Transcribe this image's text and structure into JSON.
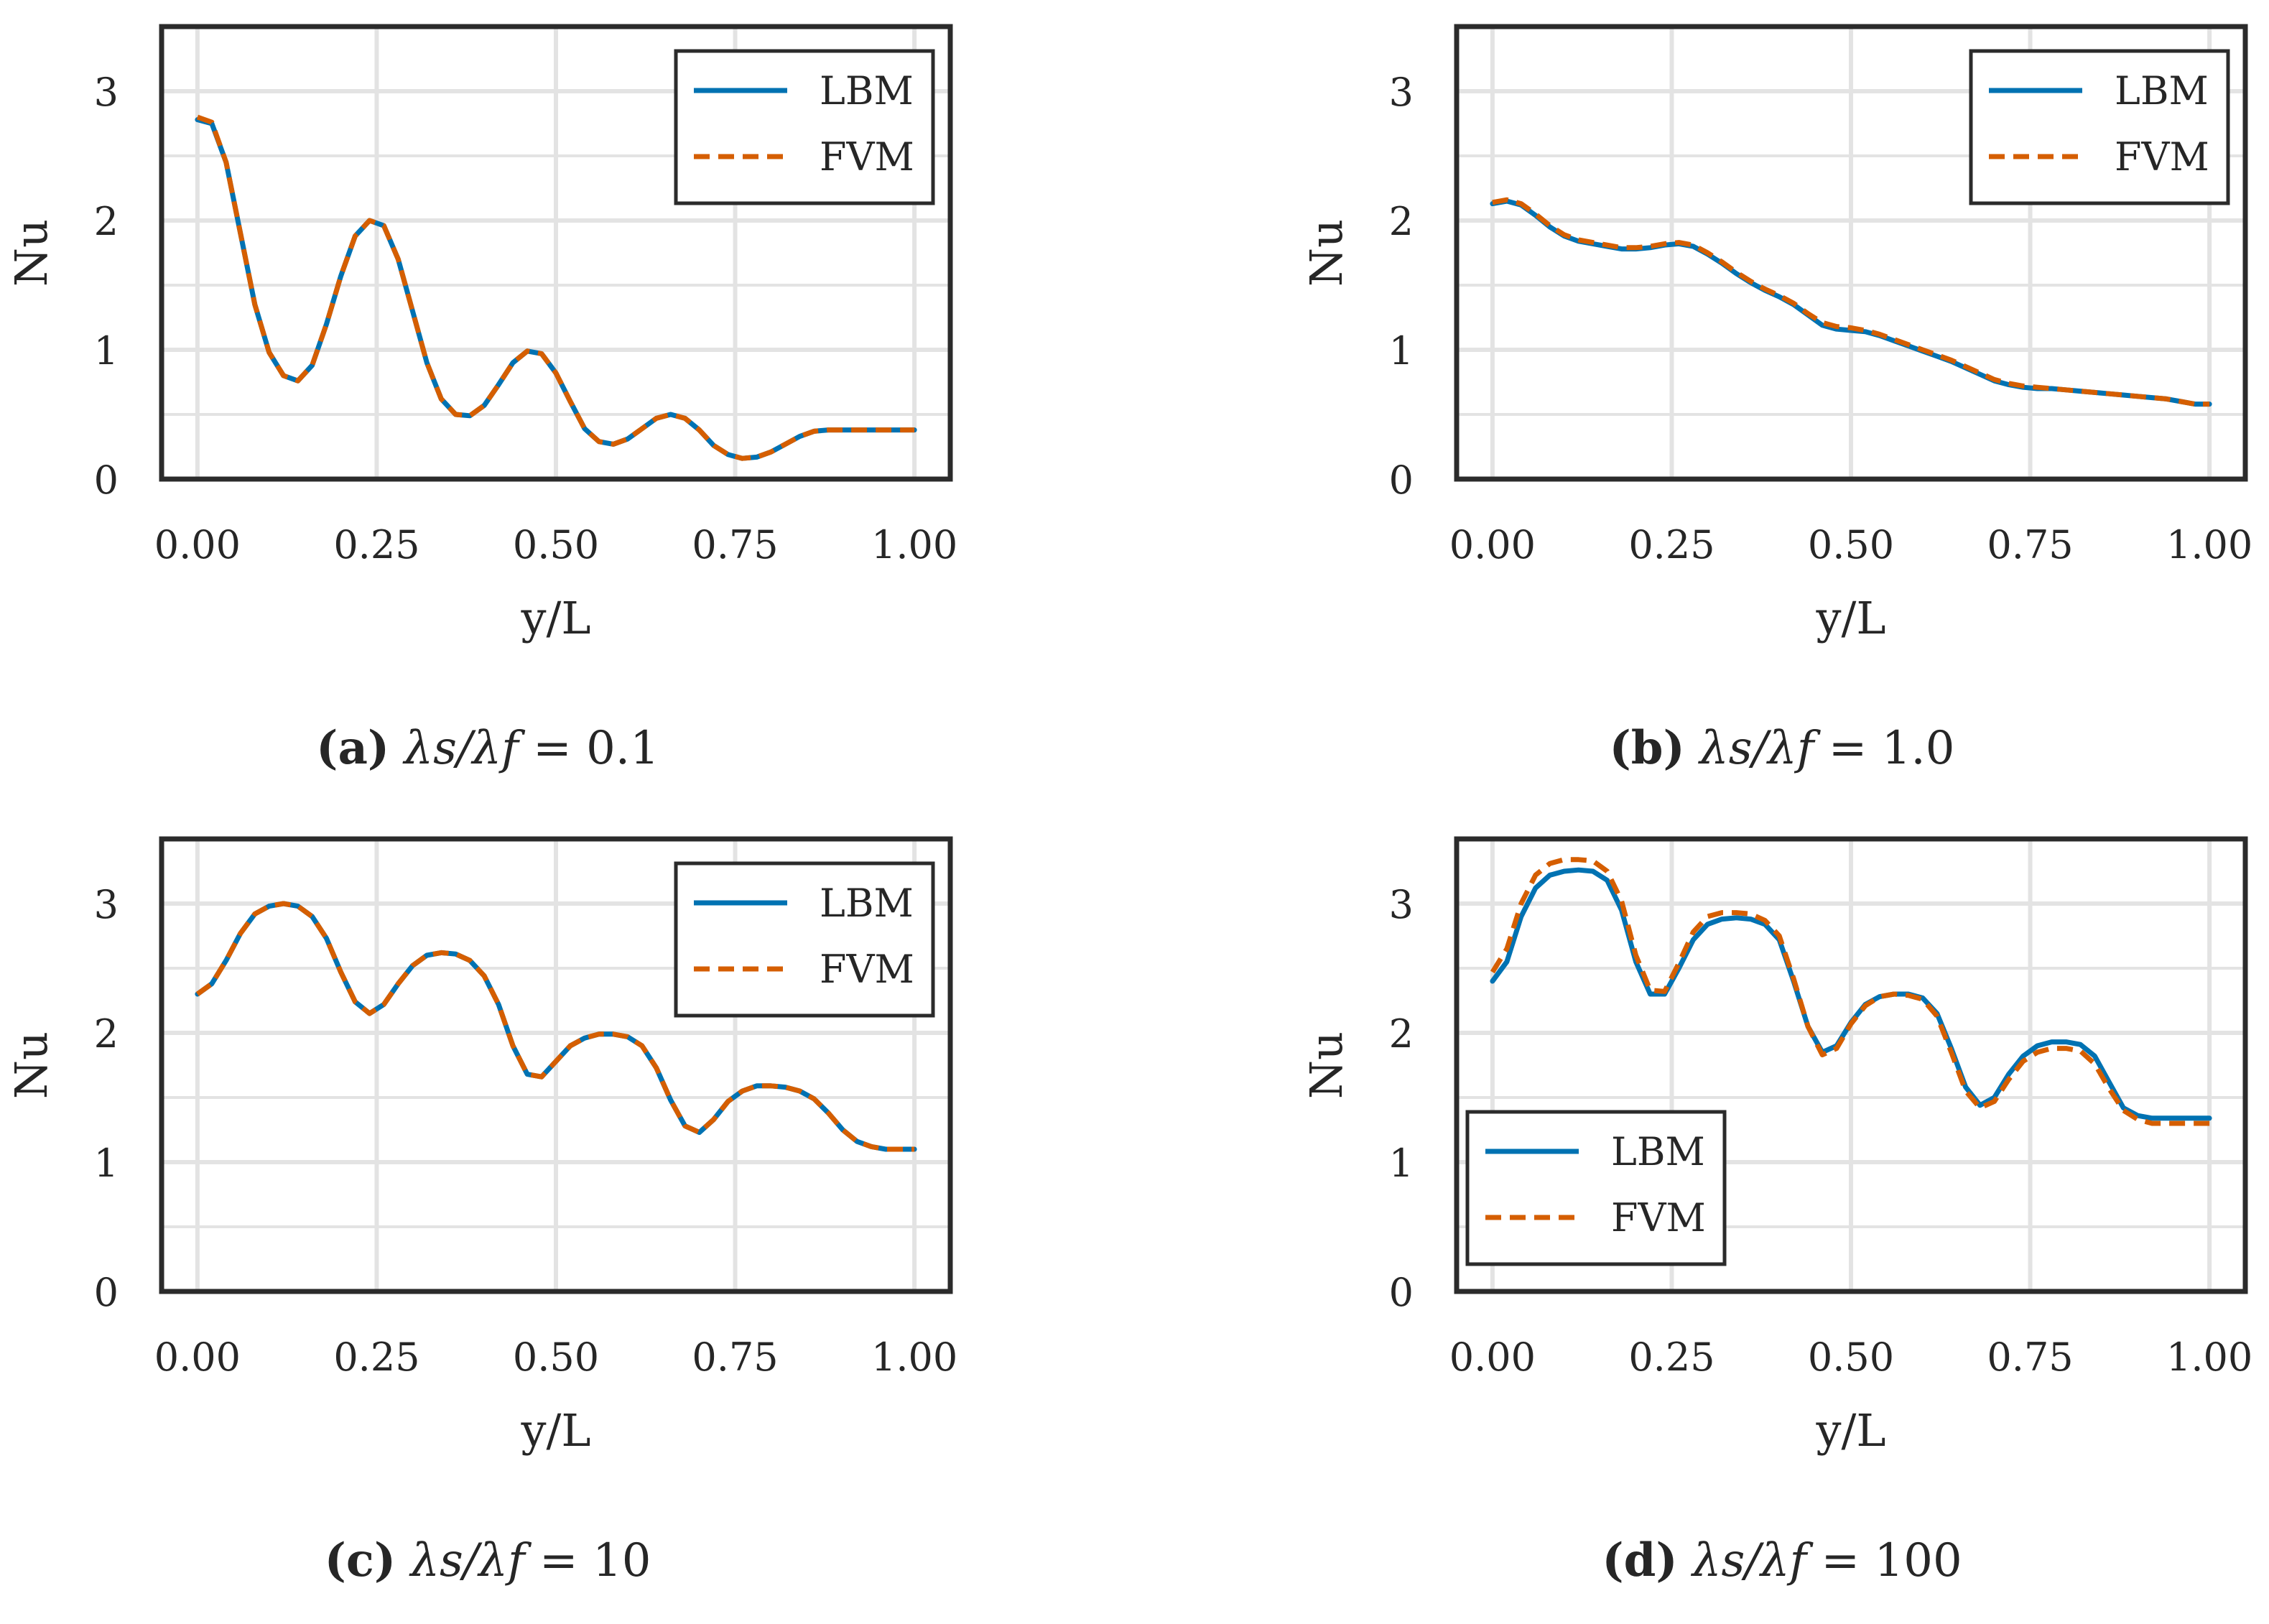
{
  "colors": {
    "lbm": "#0072b2",
    "fvm": "#d55e00",
    "frame": "#2b2b2b",
    "grid": "#e3e3e3"
  },
  "chart_data": [
    {
      "type": "line",
      "panel": "a",
      "caption": {
        "label": "(a)",
        "expr": "λs/λf",
        "value": "= 0.1"
      },
      "xlabel": "y/L",
      "ylabel": "Nu",
      "xlim": [
        -0.05,
        1.05
      ],
      "ylim": [
        0,
        3.5
      ],
      "xticks": [
        0,
        0.25,
        0.5,
        0.75,
        1.0
      ],
      "xtick_labels": [
        "0.00",
        "0.25",
        "0.50",
        "0.75",
        "1.00"
      ],
      "yticks": [
        0,
        1,
        2,
        3
      ],
      "ytick_labels": [
        "0",
        "1",
        "2",
        "3"
      ],
      "grid": true,
      "legend": "top-right",
      "x": [
        0.0,
        0.02,
        0.04,
        0.06,
        0.08,
        0.1,
        0.12,
        0.14,
        0.16,
        0.18,
        0.2,
        0.22,
        0.24,
        0.26,
        0.28,
        0.3,
        0.32,
        0.34,
        0.36,
        0.38,
        0.4,
        0.42,
        0.44,
        0.46,
        0.48,
        0.5,
        0.52,
        0.54,
        0.56,
        0.58,
        0.6,
        0.62,
        0.64,
        0.66,
        0.68,
        0.7,
        0.72,
        0.74,
        0.76,
        0.78,
        0.8,
        0.82,
        0.84,
        0.86,
        0.88,
        0.9,
        0.92,
        0.94,
        0.96,
        0.98,
        1.0
      ],
      "series": [
        {
          "name": "LBM",
          "style": "solid",
          "values": [
            2.78,
            2.75,
            2.45,
            1.9,
            1.35,
            0.98,
            0.8,
            0.76,
            0.88,
            1.2,
            1.57,
            1.88,
            2.0,
            1.96,
            1.7,
            1.3,
            0.9,
            0.62,
            0.5,
            0.49,
            0.57,
            0.73,
            0.9,
            0.99,
            0.97,
            0.82,
            0.6,
            0.39,
            0.29,
            0.27,
            0.31,
            0.39,
            0.47,
            0.5,
            0.47,
            0.38,
            0.26,
            0.19,
            0.16,
            0.17,
            0.21,
            0.27,
            0.33,
            0.37,
            0.38,
            0.38,
            0.38,
            0.38,
            0.38,
            0.38,
            0.38
          ]
        },
        {
          "name": "FVM",
          "style": "dashed",
          "values": [
            2.8,
            2.76,
            2.45,
            1.9,
            1.35,
            0.98,
            0.8,
            0.76,
            0.88,
            1.2,
            1.57,
            1.88,
            2.0,
            1.96,
            1.7,
            1.3,
            0.9,
            0.62,
            0.5,
            0.49,
            0.57,
            0.73,
            0.9,
            0.99,
            0.97,
            0.82,
            0.6,
            0.39,
            0.29,
            0.27,
            0.31,
            0.39,
            0.47,
            0.5,
            0.47,
            0.38,
            0.26,
            0.19,
            0.16,
            0.17,
            0.21,
            0.27,
            0.33,
            0.37,
            0.38,
            0.38,
            0.38,
            0.38,
            0.38,
            0.38,
            0.38
          ]
        }
      ]
    },
    {
      "type": "line",
      "panel": "b",
      "caption": {
        "label": "(b)",
        "expr": "λs/λf",
        "value": "= 1.0"
      },
      "xlabel": "y/L",
      "ylabel": "Nu",
      "xlim": [
        -0.05,
        1.05
      ],
      "ylim": [
        0,
        3.5
      ],
      "xticks": [
        0,
        0.25,
        0.5,
        0.75,
        1.0
      ],
      "xtick_labels": [
        "0.00",
        "0.25",
        "0.50",
        "0.75",
        "1.00"
      ],
      "yticks": [
        0,
        1,
        2,
        3
      ],
      "ytick_labels": [
        "0",
        "1",
        "2",
        "3"
      ],
      "grid": true,
      "legend": "top-right",
      "x": [
        0.0,
        0.02,
        0.04,
        0.06,
        0.08,
        0.1,
        0.12,
        0.14,
        0.16,
        0.18,
        0.2,
        0.22,
        0.24,
        0.26,
        0.28,
        0.3,
        0.32,
        0.34,
        0.36,
        0.38,
        0.4,
        0.42,
        0.44,
        0.46,
        0.48,
        0.5,
        0.52,
        0.54,
        0.56,
        0.58,
        0.6,
        0.62,
        0.64,
        0.66,
        0.68,
        0.7,
        0.72,
        0.74,
        0.76,
        0.78,
        0.8,
        0.82,
        0.84,
        0.86,
        0.88,
        0.9,
        0.92,
        0.94,
        0.96,
        0.98,
        1.0
      ],
      "series": [
        {
          "name": "LBM",
          "style": "solid",
          "values": [
            2.13,
            2.15,
            2.12,
            2.04,
            1.95,
            1.88,
            1.84,
            1.82,
            1.8,
            1.78,
            1.78,
            1.79,
            1.81,
            1.82,
            1.8,
            1.74,
            1.67,
            1.59,
            1.52,
            1.46,
            1.41,
            1.35,
            1.27,
            1.19,
            1.16,
            1.15,
            1.14,
            1.11,
            1.07,
            1.03,
            0.99,
            0.95,
            0.91,
            0.86,
            0.81,
            0.76,
            0.73,
            0.71,
            0.7,
            0.7,
            0.69,
            0.68,
            0.67,
            0.66,
            0.65,
            0.64,
            0.63,
            0.62,
            0.6,
            0.58,
            0.58
          ]
        },
        {
          "name": "FVM",
          "style": "dashed",
          "values": [
            2.14,
            2.16,
            2.13,
            2.05,
            1.96,
            1.89,
            1.85,
            1.83,
            1.81,
            1.79,
            1.79,
            1.8,
            1.82,
            1.83,
            1.81,
            1.75,
            1.68,
            1.6,
            1.53,
            1.47,
            1.42,
            1.36,
            1.28,
            1.21,
            1.18,
            1.17,
            1.15,
            1.12,
            1.08,
            1.04,
            1.0,
            0.96,
            0.92,
            0.87,
            0.82,
            0.77,
            0.74,
            0.72,
            0.71,
            0.7,
            0.69,
            0.68,
            0.67,
            0.66,
            0.65,
            0.64,
            0.63,
            0.62,
            0.6,
            0.58,
            0.58
          ]
        }
      ]
    },
    {
      "type": "line",
      "panel": "c",
      "caption": {
        "label": "(c)",
        "expr": "λs/λf",
        "value": "= 10"
      },
      "xlabel": "y/L",
      "ylabel": "Nu",
      "xlim": [
        -0.05,
        1.05
      ],
      "ylim": [
        0,
        3.5
      ],
      "xticks": [
        0,
        0.25,
        0.5,
        0.75,
        1.0
      ],
      "xtick_labels": [
        "0.00",
        "0.25",
        "0.50",
        "0.75",
        "1.00"
      ],
      "yticks": [
        0,
        1,
        2,
        3
      ],
      "ytick_labels": [
        "0",
        "1",
        "2",
        "3"
      ],
      "grid": true,
      "legend": "top-right",
      "x": [
        0.0,
        0.02,
        0.04,
        0.06,
        0.08,
        0.1,
        0.12,
        0.14,
        0.16,
        0.18,
        0.2,
        0.22,
        0.24,
        0.26,
        0.28,
        0.3,
        0.32,
        0.34,
        0.36,
        0.38,
        0.4,
        0.42,
        0.44,
        0.46,
        0.48,
        0.5,
        0.52,
        0.54,
        0.56,
        0.58,
        0.6,
        0.62,
        0.64,
        0.66,
        0.68,
        0.7,
        0.72,
        0.74,
        0.76,
        0.78,
        0.8,
        0.82,
        0.84,
        0.86,
        0.88,
        0.9,
        0.92,
        0.94,
        0.96,
        0.98,
        1.0
      ],
      "series": [
        {
          "name": "LBM",
          "style": "solid",
          "values": [
            2.3,
            2.38,
            2.56,
            2.77,
            2.92,
            2.98,
            3.0,
            2.98,
            2.9,
            2.73,
            2.47,
            2.24,
            2.15,
            2.22,
            2.38,
            2.52,
            2.6,
            2.62,
            2.61,
            2.56,
            2.44,
            2.22,
            1.9,
            1.68,
            1.66,
            1.78,
            1.9,
            1.96,
            1.99,
            1.99,
            1.97,
            1.9,
            1.73,
            1.48,
            1.28,
            1.23,
            1.33,
            1.47,
            1.55,
            1.59,
            1.59,
            1.58,
            1.55,
            1.49,
            1.38,
            1.25,
            1.16,
            1.12,
            1.1,
            1.1,
            1.1
          ]
        },
        {
          "name": "FVM",
          "style": "dashed",
          "values": [
            2.3,
            2.38,
            2.56,
            2.77,
            2.92,
            2.98,
            3.0,
            2.98,
            2.9,
            2.73,
            2.47,
            2.24,
            2.15,
            2.22,
            2.38,
            2.52,
            2.6,
            2.62,
            2.61,
            2.56,
            2.44,
            2.22,
            1.9,
            1.68,
            1.66,
            1.78,
            1.9,
            1.96,
            1.99,
            1.99,
            1.97,
            1.9,
            1.73,
            1.48,
            1.28,
            1.23,
            1.33,
            1.47,
            1.55,
            1.59,
            1.59,
            1.58,
            1.55,
            1.49,
            1.38,
            1.25,
            1.16,
            1.12,
            1.1,
            1.1,
            1.1
          ]
        }
      ]
    },
    {
      "type": "line",
      "panel": "d",
      "caption": {
        "label": "(d)",
        "expr": "λs/λf",
        "value": "= 100"
      },
      "xlabel": "y/L",
      "ylabel": "Nu",
      "xlim": [
        -0.05,
        1.05
      ],
      "ylim": [
        0,
        3.5
      ],
      "xticks": [
        0,
        0.25,
        0.5,
        0.75,
        1.0
      ],
      "xtick_labels": [
        "0.00",
        "0.25",
        "0.50",
        "0.75",
        "1.00"
      ],
      "yticks": [
        0,
        1,
        2,
        3
      ],
      "ytick_labels": [
        "0",
        "1",
        "2",
        "3"
      ],
      "grid": true,
      "legend": "lower-left",
      "x": [
        0.0,
        0.02,
        0.04,
        0.06,
        0.08,
        0.1,
        0.12,
        0.14,
        0.16,
        0.18,
        0.2,
        0.22,
        0.24,
        0.26,
        0.28,
        0.3,
        0.32,
        0.34,
        0.36,
        0.38,
        0.4,
        0.42,
        0.44,
        0.46,
        0.48,
        0.5,
        0.52,
        0.54,
        0.56,
        0.58,
        0.6,
        0.62,
        0.64,
        0.66,
        0.68,
        0.7,
        0.72,
        0.74,
        0.76,
        0.78,
        0.8,
        0.82,
        0.84,
        0.86,
        0.88,
        0.9,
        0.92,
        0.94,
        0.96,
        0.98,
        1.0
      ],
      "series": [
        {
          "name": "LBM",
          "style": "solid",
          "values": [
            2.4,
            2.55,
            2.9,
            3.12,
            3.22,
            3.25,
            3.26,
            3.25,
            3.18,
            2.95,
            2.55,
            2.3,
            2.3,
            2.5,
            2.72,
            2.84,
            2.88,
            2.89,
            2.88,
            2.84,
            2.72,
            2.4,
            2.05,
            1.85,
            1.9,
            2.08,
            2.22,
            2.28,
            2.3,
            2.3,
            2.27,
            2.15,
            1.88,
            1.58,
            1.44,
            1.5,
            1.68,
            1.82,
            1.9,
            1.93,
            1.93,
            1.91,
            1.82,
            1.62,
            1.42,
            1.36,
            1.34,
            1.34,
            1.34,
            1.34,
            1.34
          ]
        },
        {
          "name": "FVM",
          "style": "dashed",
          "values": [
            2.47,
            2.65,
            3.0,
            3.22,
            3.31,
            3.34,
            3.34,
            3.33,
            3.25,
            3.02,
            2.6,
            2.33,
            2.32,
            2.54,
            2.78,
            2.9,
            2.93,
            2.93,
            2.92,
            2.87,
            2.75,
            2.42,
            2.05,
            1.83,
            1.88,
            2.07,
            2.21,
            2.28,
            2.3,
            2.29,
            2.26,
            2.13,
            1.85,
            1.55,
            1.42,
            1.47,
            1.64,
            1.78,
            1.85,
            1.88,
            1.88,
            1.86,
            1.76,
            1.57,
            1.4,
            1.33,
            1.3,
            1.3,
            1.3,
            1.3,
            1.3
          ]
        }
      ]
    }
  ]
}
